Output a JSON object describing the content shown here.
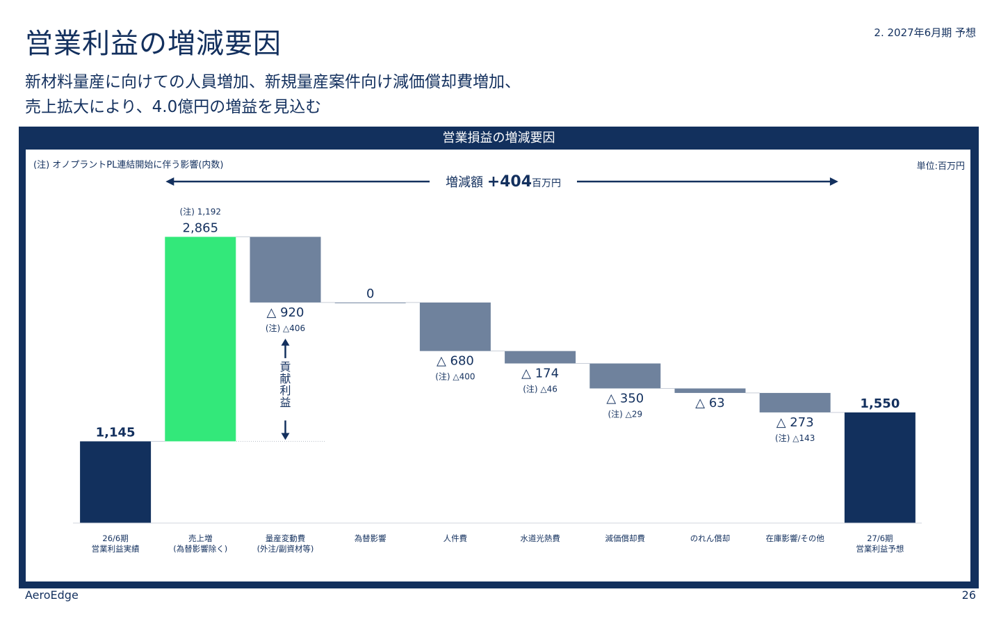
{
  "page": {
    "title": "営業利益の増減要因",
    "section": "2. 2027年6月期 予想",
    "subtitle_line1": "新材料量産に向けての人員増加、新規量産案件向け減価償却費増加、",
    "subtitle_line2": "売上拡大により、4.0億円の増益を見込む",
    "box_title": "営業損益の増減要因",
    "note": "(注) オノプラントPL連結開始に伴う影響(内数)",
    "unit": "単位:百万円",
    "footer_left": "AeroEdge",
    "page_number": "26"
  },
  "chart_data": {
    "type": "bar",
    "subtype": "waterfall",
    "title": "営業損益の増減要因",
    "unit": "百万円",
    "categories": [
      [
        "26/6期",
        "営業利益実績"
      ],
      [
        "売上増",
        "(為替影響除く)"
      ],
      [
        "量産変動費",
        "(外注/副資材等)"
      ],
      [
        "為替影響"
      ],
      [
        "人件費"
      ],
      [
        "水道光熱費"
      ],
      [
        "減価償却費"
      ],
      [
        "のれん償却"
      ],
      [
        "在庫影響/その他"
      ],
      [
        "27/6期",
        "営業利益予想"
      ]
    ],
    "values": [
      1145,
      2865,
      -920,
      0,
      -680,
      -174,
      -350,
      -63,
      -273,
      1550
    ],
    "kinds": [
      "total",
      "increase",
      "decrease",
      "decrease",
      "decrease",
      "decrease",
      "decrease",
      "decrease",
      "decrease",
      "total"
    ],
    "value_labels": [
      "1,145",
      "2,865",
      "△ 920",
      "0",
      "△ 680",
      "△ 174",
      "△ 350",
      "△ 63",
      "△ 273",
      "1,550"
    ],
    "note_labels": [
      "",
      "(注) 1,192",
      "(注) △406",
      "",
      "(注) △400",
      "(注) △46",
      "(注) △29",
      "",
      "(注) △143",
      ""
    ],
    "change_label": "増減額",
    "change_value": "+404",
    "change_unit": "百万円",
    "contribution_label": "貢献利益",
    "ylim": [
      0,
      4200
    ],
    "colors": {
      "total": "#12305d",
      "increase": "#33e87a",
      "decrease": "#6f829d"
    }
  }
}
